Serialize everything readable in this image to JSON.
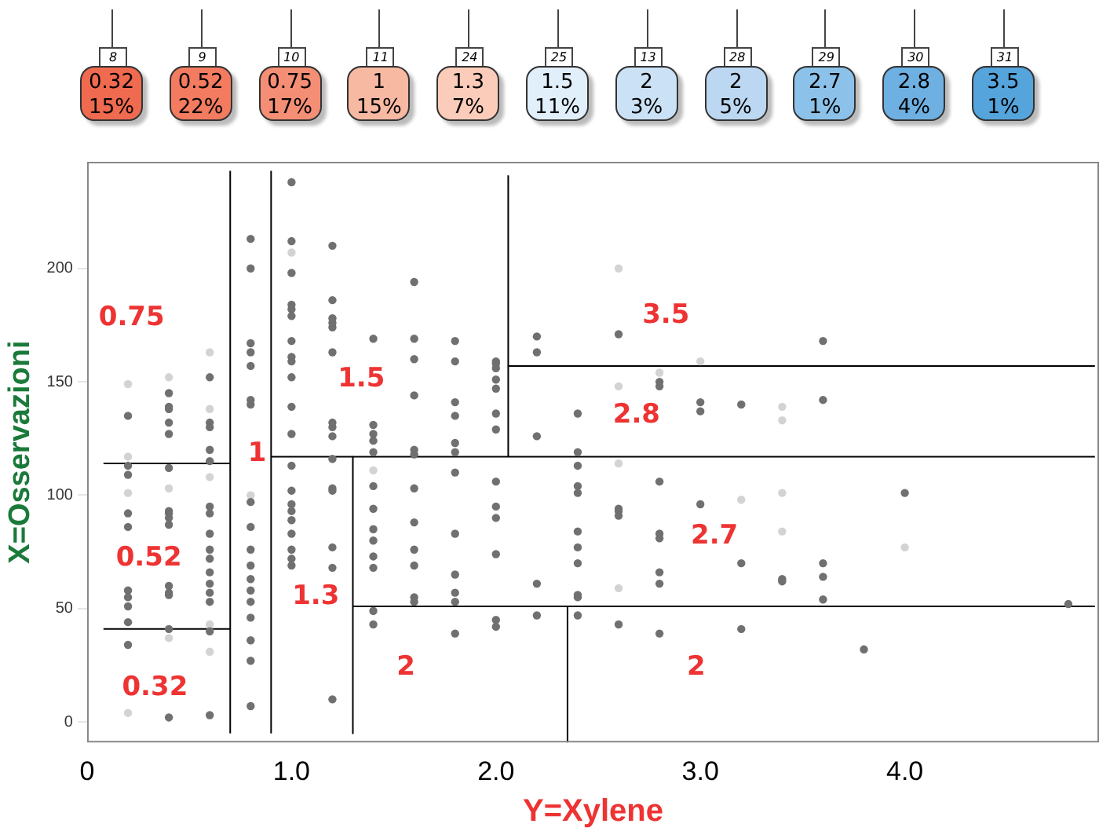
{
  "chart_data": {
    "type": "scatter",
    "xlabel": "Y=Xylene",
    "ylabel": "X=Osservazioni",
    "xlim": [
      0,
      4.95
    ],
    "ylim": [
      -9,
      247
    ],
    "xticks": [
      0,
      {
        "value": 1,
        "label": "1.0"
      },
      {
        "value": 2,
        "label": "2.0"
      },
      {
        "value": 3,
        "label": "3.0"
      },
      {
        "value": 4,
        "label": "4.0"
      }
    ],
    "yticks": [
      0,
      50,
      100,
      150,
      200
    ],
    "grid": false,
    "legend": false,
    "marker": "circle",
    "series": [
      {
        "x": [
          0.2,
          0.2,
          0.2,
          0.2,
          0.2,
          0.2,
          0.2,
          0.2,
          0.2,
          0.2,
          0.2,
          0.2,
          0.2,
          0.2,
          0.4,
          0.4,
          0.4,
          0.4,
          0.4,
          0.4,
          0.4,
          0.4,
          0.4,
          0.4,
          0.4,
          0.4,
          0.4,
          0.4,
          0.4,
          0.4,
          0.4,
          0.4,
          0.6,
          0.6,
          0.6,
          0.6,
          0.6,
          0.6,
          0.6,
          0.6,
          0.6,
          0.6,
          0.6,
          0.6,
          0.6,
          0.6,
          0.6,
          0.6,
          0.6,
          0.6,
          0.6,
          0.6,
          0.6,
          0.8,
          0.8,
          0.8,
          0.8,
          0.8,
          0.8,
          0.8,
          0.8,
          0.8,
          0.8,
          0.8,
          0.8,
          0.8,
          0.8,
          0.8,
          0.8,
          0.8,
          0.8,
          0.8,
          1.0,
          1.0,
          1.0,
          1.0,
          1.0,
          1.0,
          1.0,
          1.0,
          1.0,
          1.0,
          1.0,
          1.0,
          1.0,
          1.0,
          1.0,
          1.0,
          1.0,
          1.0,
          1.0,
          1.0,
          1.0,
          1.0,
          1.2,
          1.2,
          1.2,
          1.2,
          1.2,
          1.2,
          1.2,
          1.2,
          1.2,
          1.2,
          1.2,
          1.2,
          1.2,
          1.2,
          1.2,
          1.4,
          1.4,
          1.4,
          1.4,
          1.4,
          1.4,
          1.4,
          1.4,
          1.4,
          1.4,
          1.4,
          1.4,
          1.4,
          1.4,
          1.6,
          1.6,
          1.6,
          1.6,
          1.6,
          1.6,
          1.6,
          1.6,
          1.6,
          1.6,
          1.6,
          1.6,
          1.8,
          1.8,
          1.8,
          1.8,
          1.8,
          1.8,
          1.8,
          1.8,
          1.8,
          1.8,
          1.8,
          1.8,
          2.0,
          2.0,
          2.0,
          2.0,
          2.0,
          2.0,
          2.0,
          2.0,
          2.0,
          2.0,
          2.0,
          2.0,
          2.0,
          2.2,
          2.2,
          2.2,
          2.2,
          2.2,
          2.4,
          2.4,
          2.4,
          2.4,
          2.4,
          2.4,
          2.4,
          2.4,
          2.4,
          2.4,
          2.4,
          2.6,
          2.6,
          2.6,
          2.6,
          2.6,
          2.6,
          2.6,
          2.6,
          2.6,
          2.8,
          2.8,
          2.8,
          2.8,
          2.8,
          2.8,
          2.8,
          2.8,
          2.8,
          3.0,
          3.0,
          3.0,
          3.0,
          3.2,
          3.2,
          3.2,
          3.2,
          3.4,
          3.4,
          3.4,
          3.4,
          3.4,
          3.4,
          3.6,
          3.6,
          3.6,
          3.6,
          3.6,
          3.8,
          4.0,
          4.0,
          4.8
        ],
        "values": [
          149,
          135,
          117,
          113,
          109,
          101,
          92,
          86,
          58,
          55,
          51,
          44,
          34,
          4,
          152,
          145,
          139,
          138,
          132,
          127,
          112,
          103,
          93,
          92,
          90,
          87,
          60,
          57,
          56,
          41,
          37,
          2,
          163,
          152,
          138,
          132,
          130,
          120,
          115,
          108,
          95,
          92,
          83,
          76,
          72,
          66,
          61,
          57,
          53,
          43,
          40,
          31,
          3,
          213,
          200,
          167,
          163,
          157,
          142,
          140,
          100,
          97,
          86,
          76,
          69,
          63,
          58,
          53,
          46,
          36,
          27,
          7,
          238,
          212,
          207,
          198,
          184,
          182,
          179,
          168,
          161,
          159,
          152,
          139,
          127,
          113,
          102,
          96,
          93,
          89,
          83,
          76,
          72,
          69,
          210,
          186,
          178,
          176,
          174,
          163,
          132,
          130,
          126,
          116,
          103,
          102,
          77,
          68,
          10,
          169,
          131,
          127,
          124,
          119,
          111,
          104,
          94,
          85,
          80,
          73,
          68,
          49,
          43,
          194,
          169,
          160,
          144,
          120,
          118,
          103,
          88,
          76,
          69,
          55,
          53,
          168,
          159,
          141,
          135,
          123,
          119,
          110,
          83,
          65,
          57,
          53,
          39,
          159,
          158,
          156,
          151,
          147,
          136,
          129,
          106,
          95,
          90,
          74,
          45,
          42,
          170,
          163,
          126,
          61,
          47,
          136,
          119,
          113,
          104,
          101,
          84,
          77,
          70,
          56,
          55,
          47,
          200,
          171,
          148,
          114,
          94,
          93,
          91,
          59,
          43,
          154,
          150,
          148,
          106,
          83,
          81,
          66,
          61,
          39,
          159,
          141,
          137,
          96,
          140,
          98,
          70,
          41,
          139,
          133,
          101,
          84,
          63,
          62,
          168,
          142,
          70,
          64,
          54,
          32,
          101,
          77,
          52
        ],
        "colors": [
          "#d3d3d3",
          "#707070",
          "#d3d3d3",
          "#707070",
          "#707070",
          "#d3d3d3",
          "#707070",
          "#707070",
          "#707070",
          "#707070",
          "#707070",
          "#707070",
          "#707070",
          "#d3d3d3",
          "#d3d3d3",
          "#707070",
          "#707070",
          "#707070",
          "#707070",
          "#707070",
          "#707070",
          "#d3d3d3",
          "#707070",
          "#707070",
          "#707070",
          "#707070",
          "#707070",
          "#707070",
          "#707070",
          "#707070",
          "#d3d3d3",
          "#707070",
          "#d3d3d3",
          "#707070",
          "#d3d3d3",
          "#707070",
          "#707070",
          "#707070",
          "#707070",
          "#d3d3d3",
          "#707070",
          "#707070",
          "#707070",
          "#707070",
          "#707070",
          "#707070",
          "#707070",
          "#707070",
          "#707070",
          "#d3d3d3",
          "#707070",
          "#d3d3d3",
          "#707070",
          "#707070",
          "#707070",
          "#707070",
          "#707070",
          "#707070",
          "#707070",
          "#707070",
          "#d3d3d3",
          "#707070",
          "#707070",
          "#707070",
          "#707070",
          "#707070",
          "#707070",
          "#707070",
          "#707070",
          "#707070",
          "#707070",
          "#707070",
          "#707070",
          "#707070",
          "#d3d3d3",
          "#707070",
          "#707070",
          "#707070",
          "#707070",
          "#707070",
          "#707070",
          "#707070",
          "#707070",
          "#707070",
          "#707070",
          "#707070",
          "#707070",
          "#707070",
          "#707070",
          "#707070",
          "#707070",
          "#707070",
          "#707070",
          "#707070",
          "#707070",
          "#707070",
          "#707070",
          "#707070",
          "#707070",
          "#707070",
          "#707070",
          "#707070",
          "#707070",
          "#707070",
          "#707070",
          "#707070",
          "#707070",
          "#707070",
          "#707070",
          "#707070",
          "#707070",
          "#707070",
          "#707070",
          "#707070",
          "#d3d3d3",
          "#707070",
          "#707070",
          "#707070",
          "#707070",
          "#707070",
          "#707070",
          "#707070",
          "#707070",
          "#707070",
          "#707070",
          "#707070",
          "#707070",
          "#707070",
          "#707070",
          "#707070",
          "#707070",
          "#707070",
          "#707070",
          "#707070",
          "#707070",
          "#707070",
          "#707070",
          "#707070",
          "#707070",
          "#707070",
          "#707070",
          "#707070",
          "#707070",
          "#707070",
          "#707070",
          "#707070",
          "#707070",
          "#707070",
          "#707070",
          "#707070",
          "#707070",
          "#707070",
          "#707070",
          "#707070",
          "#707070",
          "#707070",
          "#707070",
          "#707070",
          "#707070",
          "#707070",
          "#707070",
          "#707070",
          "#707070",
          "#707070",
          "#707070",
          "#707070",
          "#707070",
          "#707070",
          "#707070",
          "#707070",
          "#707070",
          "#707070",
          "#707070",
          "#707070",
          "#707070",
          "#707070",
          "#d3d3d3",
          "#707070",
          "#d3d3d3",
          "#d3d3d3",
          "#707070",
          "#707070",
          "#707070",
          "#d3d3d3",
          "#707070",
          "#d3d3d3",
          "#707070",
          "#707070",
          "#707070",
          "#707070",
          "#707070",
          "#707070",
          "#707070",
          "#707070",
          "#d3d3d3",
          "#707070",
          "#707070",
          "#707070",
          "#707070",
          "#d3d3d3",
          "#707070",
          "#707070",
          "#d3d3d3",
          "#d3d3d3",
          "#d3d3d3",
          "#d3d3d3",
          "#707070",
          "#707070",
          "#707070",
          "#707070",
          "#707070",
          "#707070",
          "#707070",
          "#707070",
          "#707070",
          "#d3d3d3",
          "#707070"
        ]
      },
      {
        "type": "line",
        "marker": "none",
        "color": "#000000",
        "x": [
          0.7,
          0.7
        ],
        "values": [
          -5,
          243
        ]
      },
      {
        "type": "line",
        "marker": "none",
        "color": "#000000",
        "x": [
          0.9,
          0.9
        ],
        "values": [
          -5,
          243
        ]
      },
      {
        "type": "line",
        "marker": "none",
        "color": "#000000",
        "x": [
          0.08,
          0.7
        ],
        "values": [
          114,
          114
        ]
      },
      {
        "type": "line",
        "marker": "none",
        "color": "#000000",
        "x": [
          0.08,
          0.7
        ],
        "values": [
          41,
          41
        ]
      },
      {
        "type": "line",
        "marker": "none",
        "color": "#000000",
        "x": [
          0.9,
          4.93
        ],
        "values": [
          117,
          117
        ]
      },
      {
        "type": "line",
        "marker": "none",
        "color": "#000000",
        "x": [
          1.3,
          1.3
        ],
        "values": [
          117,
          -5
        ]
      },
      {
        "type": "line",
        "marker": "none",
        "color": "#000000",
        "x": [
          1.3,
          4.93
        ],
        "values": [
          51,
          51
        ]
      },
      {
        "type": "line",
        "marker": "none",
        "color": "#000000",
        "x": [
          2.06,
          2.06
        ],
        "values": [
          117,
          241
        ]
      },
      {
        "type": "line",
        "marker": "none",
        "color": "#000000",
        "x": [
          2.06,
          4.93
        ],
        "values": [
          157,
          157
        ]
      },
      {
        "type": "line",
        "marker": "none",
        "color": "#000000",
        "x": [
          2.35,
          2.35
        ],
        "values": [
          51,
          -9
        ]
      }
    ],
    "annotations": [
      "8",
      "0.32",
      "15%",
      "9",
      "0.52",
      "22%",
      "10",
      "0.75",
      "17%",
      "11",
      "1",
      "15%",
      "24",
      "1.3",
      "7%",
      "25",
      "1.5",
      "11%",
      "13",
      "2",
      "3%",
      "28",
      "2",
      "5%",
      "29",
      "2.7",
      "1%",
      "30",
      "2.8",
      "4%",
      "31",
      "3.5",
      "1%",
      "0.75",
      "0.52",
      "0.32",
      "1",
      "1.5",
      "1.3",
      "2",
      "2.8",
      "3.5",
      "2.7",
      "2"
    ]
  }
}
